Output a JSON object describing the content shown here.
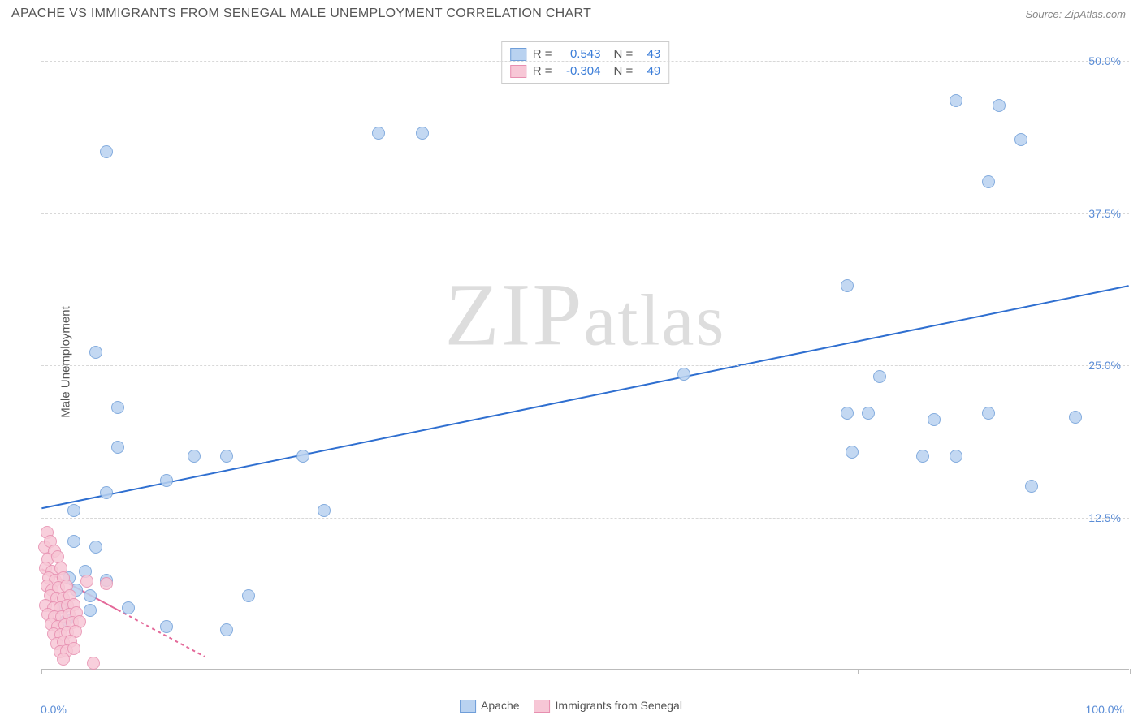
{
  "header": {
    "title": "APACHE VS IMMIGRANTS FROM SENEGAL MALE UNEMPLOYMENT CORRELATION CHART",
    "source": "Source: ZipAtlas.com"
  },
  "chart": {
    "type": "scatter",
    "ylabel": "Male Unemployment",
    "xlim": [
      0,
      100
    ],
    "ylim": [
      0,
      52
    ],
    "yticks": [
      {
        "v": 12.5,
        "label": "12.5%"
      },
      {
        "v": 25.0,
        "label": "25.0%"
      },
      {
        "v": 37.5,
        "label": "37.5%"
      },
      {
        "v": 50.0,
        "label": "50.0%"
      }
    ],
    "xticks_minor": [
      0,
      25,
      50,
      75,
      100
    ],
    "xtick_labels": [
      {
        "v": 0,
        "label": "0.0%",
        "align": "left"
      },
      {
        "v": 100,
        "label": "100.0%",
        "align": "right"
      }
    ],
    "background_color": "#ffffff",
    "grid_color": "#d8d8d8",
    "watermark": "ZIPatlas",
    "series": [
      {
        "name": "Apache",
        "fill": "#b9d2f0",
        "stroke": "#6f9ed9",
        "stroke_width": 1,
        "marker_radius": 8,
        "trend": {
          "x1": 0,
          "y1": 13.2,
          "x2": 100,
          "y2": 31.5,
          "color": "#2f6fd0",
          "width": 2,
          "dash": "none"
        },
        "stats": {
          "R": "0.543",
          "N": "43"
        },
        "points": [
          [
            6,
            42.5
          ],
          [
            31,
            44.0
          ],
          [
            35,
            44.0
          ],
          [
            84,
            46.7
          ],
          [
            88,
            46.3
          ],
          [
            90,
            43.5
          ],
          [
            87,
            40.0
          ],
          [
            74,
            31.5
          ],
          [
            77,
            24.0
          ],
          [
            74,
            21.0
          ],
          [
            76,
            21.0
          ],
          [
            74.5,
            17.8
          ],
          [
            82,
            20.5
          ],
          [
            81,
            17.5
          ],
          [
            84,
            17.5
          ],
          [
            87,
            21.0
          ],
          [
            95,
            20.7
          ],
          [
            91,
            15.0
          ],
          [
            59,
            24.2
          ],
          [
            5,
            26.0
          ],
          [
            7,
            21.5
          ],
          [
            7,
            18.2
          ],
          [
            11.5,
            15.5
          ],
          [
            14,
            17.5
          ],
          [
            17,
            17.5
          ],
          [
            6,
            14.5
          ],
          [
            3,
            13.0
          ],
          [
            24,
            17.5
          ],
          [
            26,
            13.0
          ],
          [
            19,
            6.0
          ],
          [
            17,
            3.2
          ],
          [
            11.5,
            3.5
          ],
          [
            8,
            5.0
          ],
          [
            3,
            10.5
          ],
          [
            5,
            10.0
          ],
          [
            4,
            8.0
          ],
          [
            6,
            7.3
          ],
          [
            4.5,
            4.8
          ],
          [
            3.2,
            6.5
          ],
          [
            4.5,
            6.0
          ],
          [
            2.5,
            7.5
          ],
          [
            2.0,
            5.0
          ],
          [
            2.3,
            4.0
          ]
        ]
      },
      {
        "name": "Immigrants from Senegal",
        "fill": "#f7c7d6",
        "stroke": "#e78fb0",
        "stroke_width": 1,
        "marker_radius": 8,
        "trend": {
          "x1": 0,
          "y1": 8.2,
          "x2": 15,
          "y2": 1.0,
          "color": "#e46a9a",
          "width": 2,
          "dash": "4,4",
          "solid_to_x": 7
        },
        "stats": {
          "R": "-0.304",
          "N": "49"
        },
        "points": [
          [
            0.5,
            11.2
          ],
          [
            0.3,
            10.0
          ],
          [
            0.8,
            10.5
          ],
          [
            1.2,
            9.7
          ],
          [
            0.6,
            9.0
          ],
          [
            1.5,
            9.2
          ],
          [
            0.4,
            8.3
          ],
          [
            1.0,
            8.0
          ],
          [
            1.8,
            8.3
          ],
          [
            0.7,
            7.5
          ],
          [
            1.3,
            7.3
          ],
          [
            2.0,
            7.5
          ],
          [
            0.5,
            6.8
          ],
          [
            1.0,
            6.5
          ],
          [
            1.6,
            6.7
          ],
          [
            2.3,
            6.8
          ],
          [
            0.8,
            6.0
          ],
          [
            1.4,
            5.8
          ],
          [
            2.0,
            5.8
          ],
          [
            2.6,
            6.0
          ],
          [
            0.4,
            5.2
          ],
          [
            1.1,
            5.0
          ],
          [
            1.7,
            5.0
          ],
          [
            2.4,
            5.2
          ],
          [
            3.0,
            5.3
          ],
          [
            0.6,
            4.5
          ],
          [
            1.2,
            4.3
          ],
          [
            1.9,
            4.3
          ],
          [
            2.5,
            4.5
          ],
          [
            3.2,
            4.6
          ],
          [
            0.9,
            3.7
          ],
          [
            1.5,
            3.5
          ],
          [
            2.2,
            3.6
          ],
          [
            2.8,
            3.8
          ],
          [
            3.5,
            3.9
          ],
          [
            1.1,
            2.9
          ],
          [
            1.8,
            2.8
          ],
          [
            2.4,
            3.0
          ],
          [
            3.1,
            3.1
          ],
          [
            1.4,
            2.1
          ],
          [
            2.0,
            2.2
          ],
          [
            2.7,
            2.3
          ],
          [
            1.7,
            1.4
          ],
          [
            2.3,
            1.5
          ],
          [
            3.0,
            1.7
          ],
          [
            2.0,
            0.8
          ],
          [
            4.8,
            0.5
          ],
          [
            6.0,
            7.0
          ],
          [
            4.2,
            7.2
          ]
        ]
      }
    ],
    "legend_top": {
      "rows": [
        {
          "swatch_fill": "#b9d2f0",
          "swatch_stroke": "#6f9ed9",
          "R_label": "R =",
          "R_val": "0.543",
          "N_label": "N =",
          "N_val": "43"
        },
        {
          "swatch_fill": "#f7c7d6",
          "swatch_stroke": "#e78fb0",
          "R_label": "R =",
          "R_val": "-0.304",
          "N_label": "N =",
          "N_val": "49"
        }
      ]
    },
    "legend_bottom": [
      {
        "swatch_fill": "#b9d2f0",
        "swatch_stroke": "#6f9ed9",
        "label": "Apache"
      },
      {
        "swatch_fill": "#f7c7d6",
        "swatch_stroke": "#e78fb0",
        "label": "Immigrants from Senegal"
      }
    ]
  }
}
